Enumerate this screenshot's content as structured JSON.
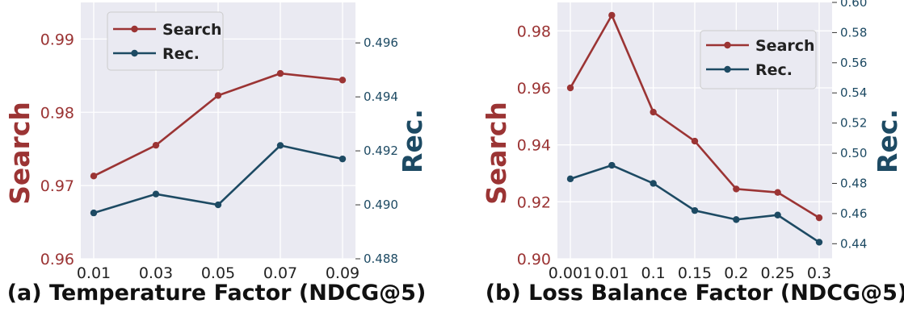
{
  "colors": {
    "search": "#9b3434",
    "rec": "#1d4a63",
    "panel_bg": "#eaeaf2",
    "grid": "#ffffff"
  },
  "chart_data": [
    {
      "type": "line",
      "caption": "(a) Temperature Factor (NDCG@5)",
      "categories": [
        "0.01",
        "0.03",
        "0.05",
        "0.07",
        "0.09"
      ],
      "ylabel_left": "Search",
      "ylabel_right": "Rec.",
      "ylim_left": [
        0.96,
        0.995
      ],
      "yticks_left": [
        "0.96",
        "0.97",
        "0.98",
        "0.99"
      ],
      "ylim_right": [
        0.488,
        0.4975
      ],
      "yticks_right": [
        "0.488",
        "0.490",
        "0.492",
        "0.494",
        "0.496"
      ],
      "legend_placement": "top-left",
      "grid": true,
      "series": [
        {
          "name": "Search",
          "axis": "left",
          "values": [
            0.9713,
            0.9755,
            0.9823,
            0.9853,
            0.9844
          ]
        },
        {
          "name": "Rec.",
          "axis": "right",
          "values": [
            0.4897,
            0.4904,
            0.49,
            0.4922,
            0.4917
          ]
        }
      ]
    },
    {
      "type": "line",
      "caption": "(b) Loss Balance Factor (NDCG@5)",
      "categories": [
        "0.001",
        "0.01",
        "0.1",
        "0.15",
        "0.2",
        "0.25",
        "0.3"
      ],
      "ylabel_left": "Search",
      "ylabel_right": "Rec.",
      "ylim_left": [
        0.9,
        0.99
      ],
      "yticks_left": [
        "0.90",
        "0.92",
        "0.94",
        "0.96",
        "0.98"
      ],
      "ylim_right": [
        0.43,
        0.6
      ],
      "yticks_right": [
        "0.44",
        "0.46",
        "0.48",
        "0.50",
        "0.52",
        "0.54",
        "0.56",
        "0.58",
        "0.60"
      ],
      "legend_placement": "top-right",
      "grid": true,
      "series": [
        {
          "name": "Search",
          "axis": "left",
          "values": [
            0.96,
            0.9855,
            0.9515,
            0.9413,
            0.9245,
            0.9233,
            0.9144
          ]
        },
        {
          "name": "Rec.",
          "axis": "right",
          "values": [
            0.483,
            0.492,
            0.48,
            0.462,
            0.456,
            0.459,
            0.441
          ]
        }
      ]
    }
  ]
}
